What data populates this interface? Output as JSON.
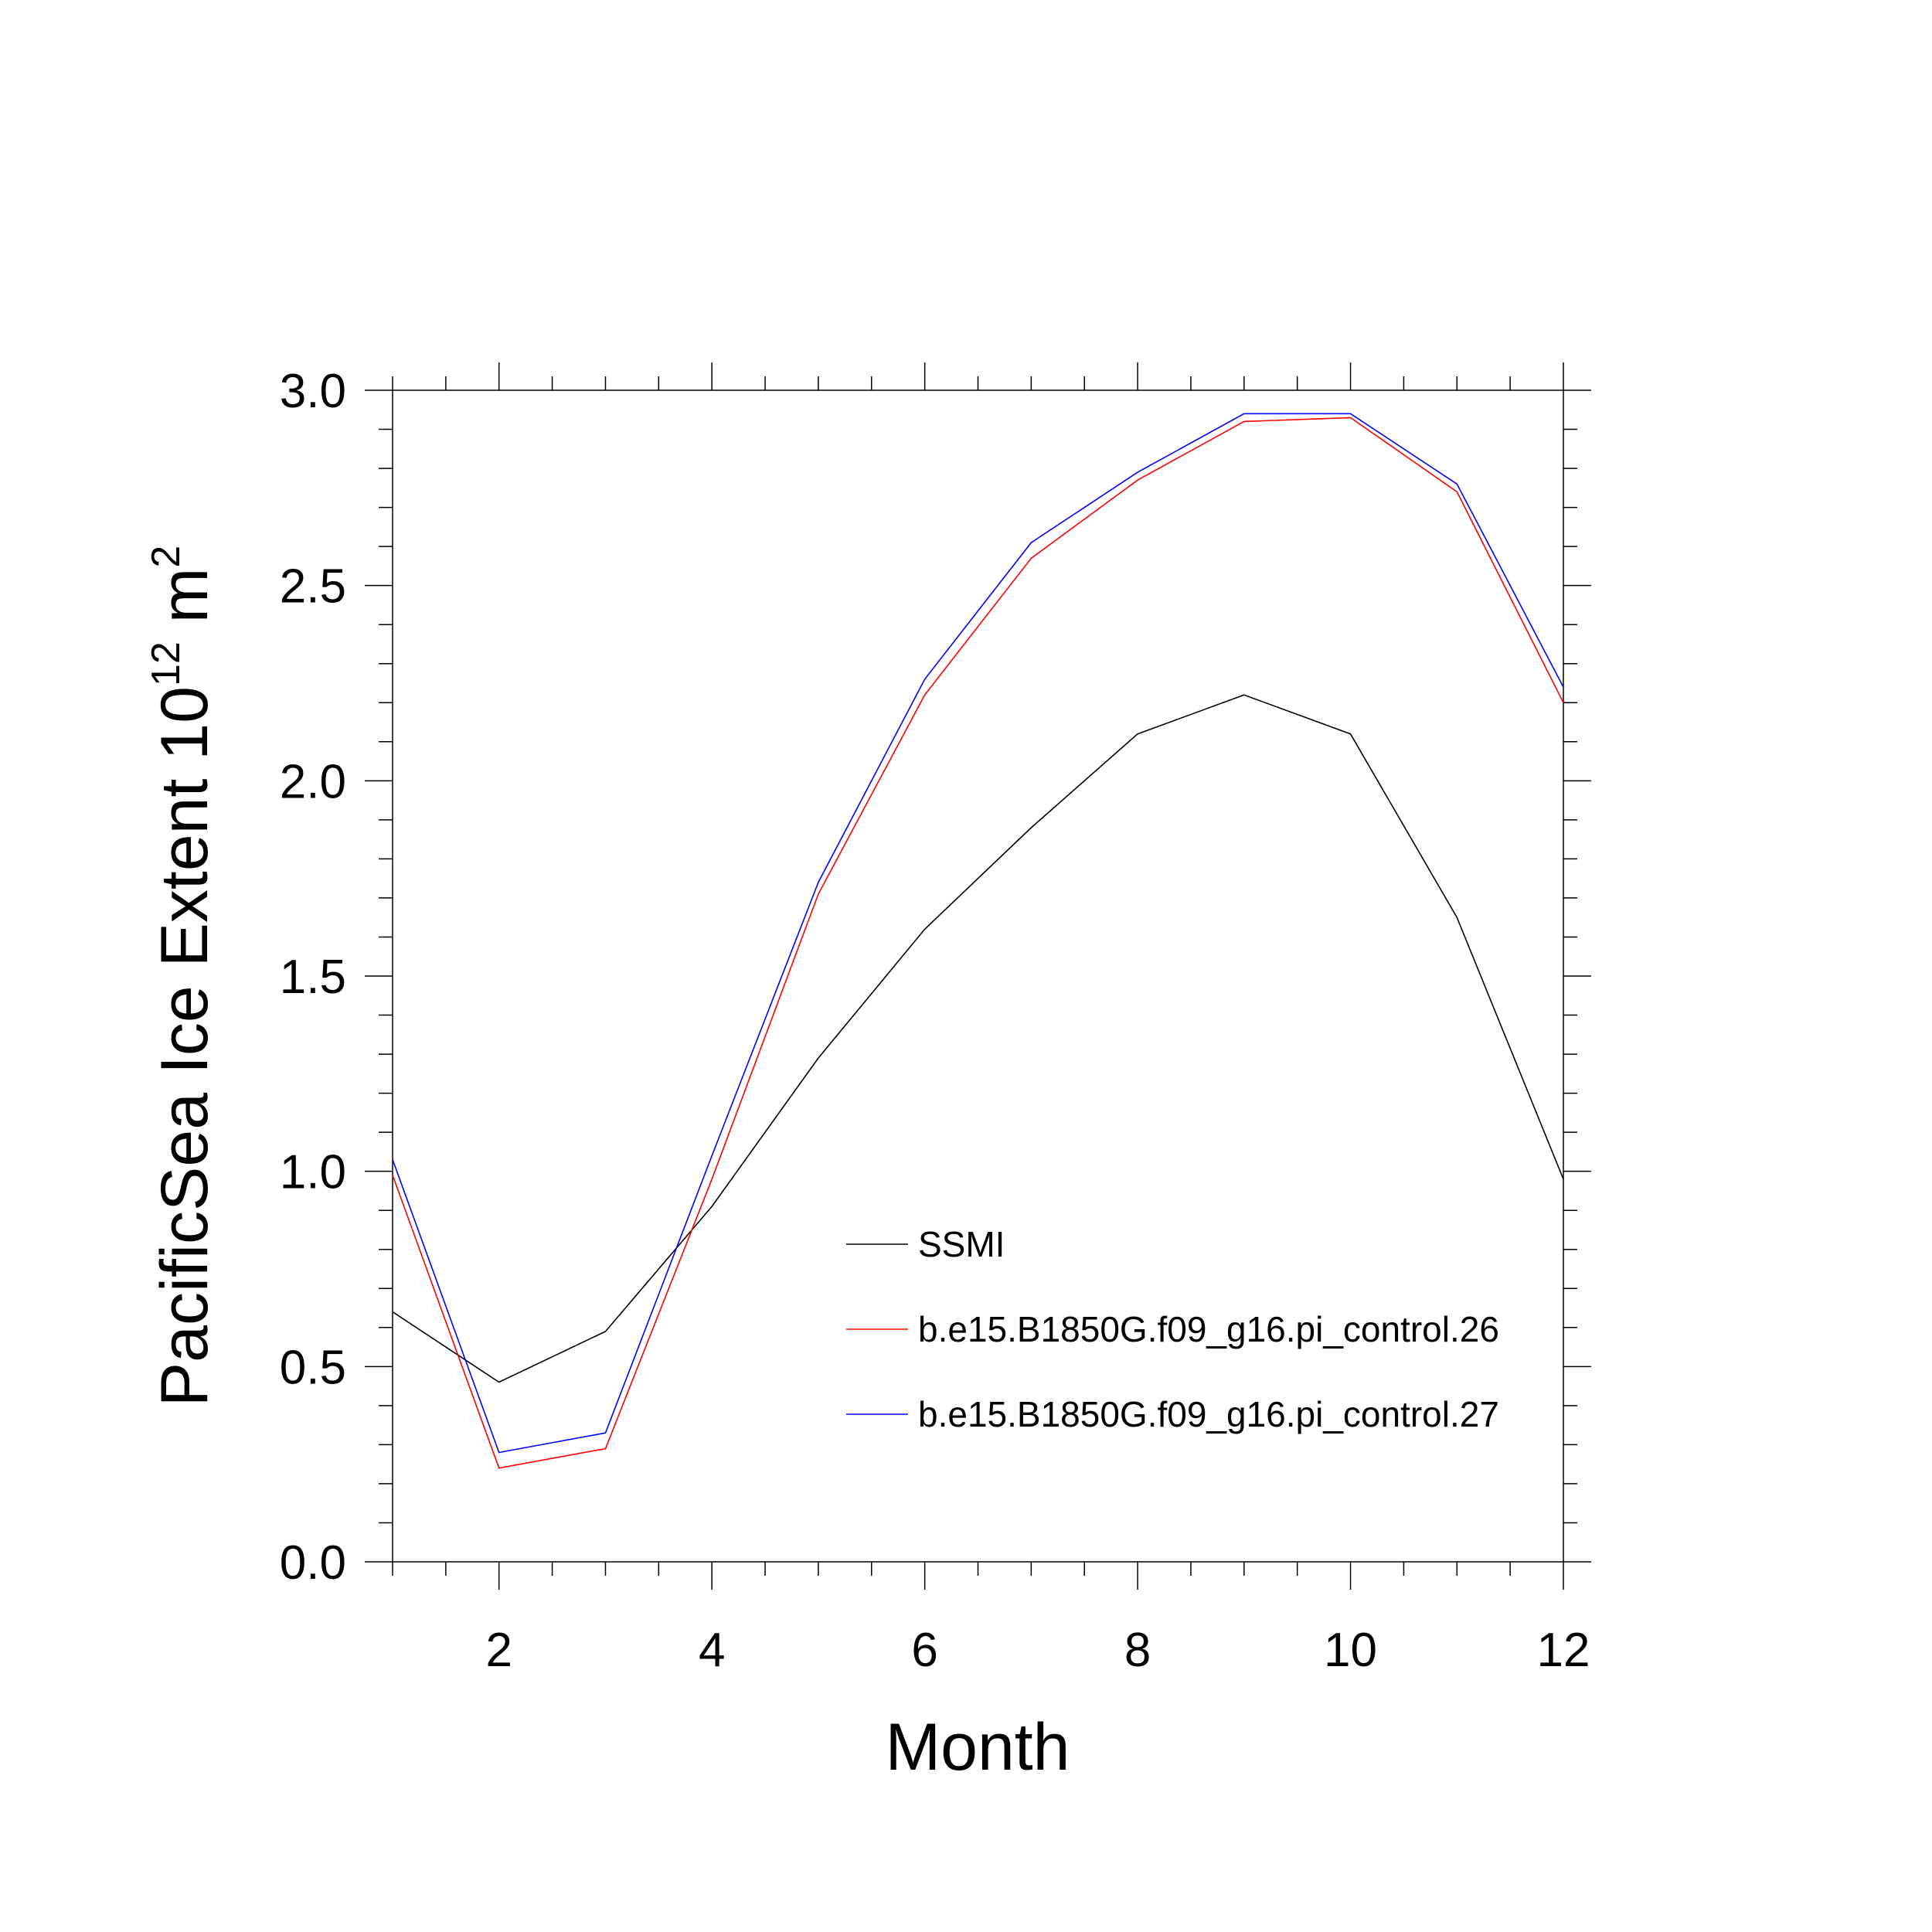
{
  "chart_data": {
    "type": "line",
    "xlabel": "Month",
    "ylabel": {
      "prefix": "PacificSea Ice Extent 10",
      "exponent": "12",
      "unit": " m",
      "unit_exponent": "2"
    },
    "xlim": [
      1,
      12
    ],
    "ylim": [
      0,
      3
    ],
    "x_major_ticks": [
      2,
      4,
      6,
      8,
      10,
      12
    ],
    "x_tick_labels": [
      "2",
      "4",
      "6",
      "8",
      "10",
      "12"
    ],
    "y_major_ticks": [
      0,
      0.5,
      1.0,
      1.5,
      2.0,
      2.5,
      3.0
    ],
    "y_tick_labels": [
      "0.0",
      "0.5",
      "1.0",
      "1.5",
      "2.0",
      "2.5",
      "3.0"
    ],
    "grid": false,
    "legend_position": "center-right",
    "x": [
      1,
      2,
      3,
      4,
      5,
      6,
      7,
      8,
      9,
      10,
      11,
      12
    ],
    "series": [
      {
        "name": "SSMI",
        "color": "#000000",
        "values": [
          0.64,
          0.46,
          0.59,
          0.91,
          1.29,
          1.62,
          1.88,
          2.12,
          2.22,
          2.12,
          1.65,
          0.98
        ]
      },
      {
        "name": "b.e15.B1850G.f09_g16.pi_control.26",
        "color": "#ff0000",
        "values": [
          0.99,
          0.24,
          0.29,
          0.98,
          1.71,
          2.22,
          2.57,
          2.77,
          2.92,
          2.93,
          2.74,
          2.2
        ]
      },
      {
        "name": "b.e15.B1850G.f09_g16.pi_control.27",
        "color": "#0000ff",
        "values": [
          1.03,
          0.28,
          0.33,
          1.04,
          1.74,
          2.26,
          2.61,
          2.79,
          2.94,
          2.94,
          2.76,
          2.24
        ]
      }
    ]
  }
}
